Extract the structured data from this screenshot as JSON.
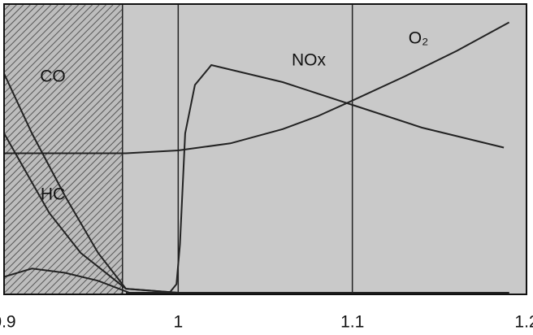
{
  "chart_data": {
    "type": "line",
    "xlim": [
      0.9,
      1.2
    ],
    "xticks": [
      0.9,
      1.0,
      1.1,
      1.2
    ],
    "ylim": [
      0,
      100
    ],
    "grid": true,
    "shaded_region": [
      0.9,
      0.968
    ],
    "series": [
      {
        "name": "CO",
        "color": "#222222",
        "x": [
          0.9,
          0.916,
          0.935,
          0.954,
          0.97,
          1.0,
          1.1,
          1.19
        ],
        "values": [
          77,
          56,
          34,
          14,
          1.4,
          0,
          0,
          0
        ]
      },
      {
        "name": "HC",
        "color": "#222222",
        "x": [
          0.9,
          0.926,
          0.944,
          0.97,
          1.0,
          1.1,
          1.19
        ],
        "values": [
          56,
          28,
          14,
          1.4,
          0,
          0,
          0
        ]
      },
      {
        "color": "#222222",
        "x": [
          0.9,
          0.916,
          0.935,
          0.954,
          0.972,
          1.0,
          1.19
        ],
        "values": [
          5.6,
          8.5,
          7,
          4.2,
          0,
          0,
          0
        ]
      },
      {
        "name": "NOx",
        "color": "#222222",
        "x": [
          0.97,
          0.995,
          0.999,
          1.001,
          1.004,
          1.0096,
          1.019,
          1.06,
          1.1,
          1.14,
          1.187
        ],
        "values": [
          0,
          0,
          3,
          17,
          56,
          73,
          80,
          74,
          66,
          58,
          51
        ]
      },
      {
        "name": "O₂",
        "color": "#222222",
        "x": [
          0.9,
          0.97,
          1.0,
          1.03,
          1.06,
          1.08,
          1.1,
          1.13,
          1.16,
          1.19
        ],
        "values": [
          49,
          49,
          50,
          52.5,
          57.5,
          62,
          67.5,
          76,
          85,
          95
        ]
      }
    ]
  }
}
